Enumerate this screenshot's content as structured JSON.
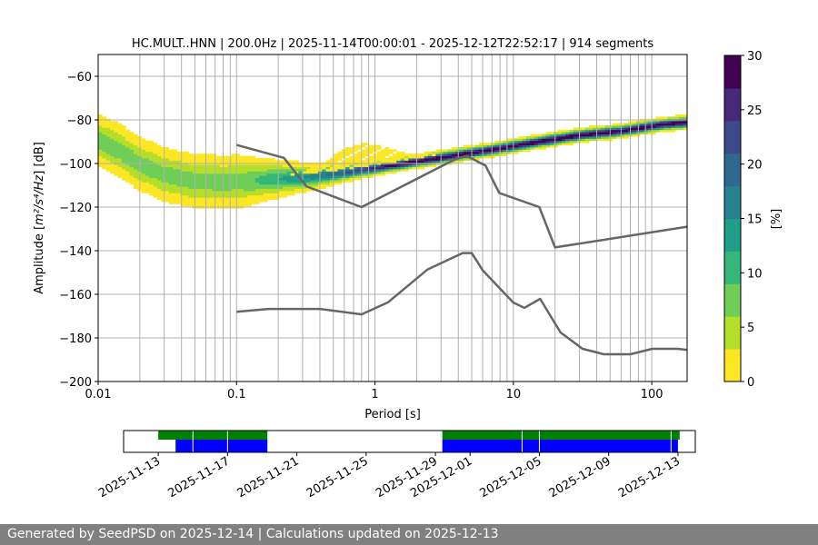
{
  "chart_data": [
    {
      "type": "heatmap",
      "title": "HC.MULT..HNN | 200.0Hz | 2025-11-14T00:00:01 - 2025-12-12T22:52:17 | 914 segments",
      "xlabel": "Period [s]",
      "ylabel_base": "Amplitude [",
      "ylabel_math": "m²/s⁴/Hz",
      "ylabel_unit": "[dB]",
      "xscale": "log",
      "xlim": [
        0.01,
        180
      ],
      "ylim": [
        -200,
        -50
      ],
      "x_ticks": [
        {
          "value": 0.01,
          "label": "0.01"
        },
        {
          "value": 0.1,
          "label": "0.1"
        },
        {
          "value": 1,
          "label": "1"
        },
        {
          "value": 10,
          "label": "10"
        },
        {
          "value": 100,
          "label": "100"
        }
      ],
      "y_ticks": [
        -60,
        -80,
        -100,
        -120,
        -140,
        -160,
        -180,
        -200
      ],
      "y_tick_labels": [
        "−60",
        "−80",
        "−100",
        "−120",
        "−140",
        "−160",
        "−180",
        "−200"
      ],
      "vertical_grid_periods": [
        0.02,
        0.03,
        0.04,
        0.05,
        0.06,
        0.07,
        0.08,
        0.09,
        0.1,
        0.2,
        0.3,
        0.4,
        0.5,
        0.6,
        0.7,
        0.8,
        0.9,
        1,
        2,
        3,
        4,
        5,
        6,
        7,
        8,
        9,
        10,
        20,
        30,
        40,
        50,
        60,
        70,
        80,
        90,
        100
      ],
      "grid": true,
      "nhnm": {
        "periods": [
          0.1,
          0.17,
          0.4,
          0.8,
          1.24,
          2.4,
          4.3,
          5.0,
          6.0,
          10.0,
          12.0,
          15.6,
          21.9,
          31.6,
          45,
          70,
          101,
          154,
          180
        ],
        "values": [
          -168,
          -166.7,
          -166.7,
          -169.2,
          -163.7,
          -148.6,
          -141.1,
          -141.1,
          -149,
          -163.8,
          -166.2,
          -162.1,
          -177.5,
          -185,
          -187.5,
          -187.5,
          -185,
          -185,
          -185.5
        ]
      },
      "nlnm": {
        "periods": [
          0.1,
          0.22,
          0.32,
          0.8,
          3.8,
          4.6,
          6.3,
          7.9,
          15.4,
          20,
          180
        ],
        "values": [
          -91.5,
          -97.4,
          -110.5,
          -120,
          -98,
          -96.5,
          -101,
          -113.5,
          -120,
          -138.5,
          -129
        ]
      },
      "psd_mode": {
        "periods": [
          0.01,
          0.015,
          0.02,
          0.03,
          0.05,
          0.08,
          0.12,
          0.2,
          0.35,
          0.6,
          1,
          2,
          4,
          8,
          15,
          30,
          60,
          120,
          180
        ],
        "values": [
          -89,
          -95,
          -100,
          -105,
          -108,
          -108.5,
          -108,
          -107,
          -106,
          -104,
          -102,
          -99,
          -96,
          -93,
          -90,
          -87,
          -85,
          -82,
          -81
        ]
      },
      "colorbar": {
        "label": "[%]",
        "min": 0,
        "max": 30,
        "ticks": [
          0,
          5,
          10,
          15,
          20,
          25,
          30
        ],
        "colors": [
          "#fde725",
          "#b5de2b",
          "#6ece58",
          "#35b779",
          "#1f9e89",
          "#26828e",
          "#31688e",
          "#3e4989",
          "#482878",
          "#440154"
        ]
      }
    },
    {
      "type": "timeline",
      "date_min": "2025-11-11",
      "date_max": "2025-12-14",
      "tick_labels": [
        "2025-11-13",
        "2025-11-17",
        "2025-11-21",
        "2025-11-25",
        "2025-11-29",
        "2025-12-01",
        "2025-12-05",
        "2025-12-09",
        "2025-12-13"
      ],
      "tick_dates": [
        "2025-11-13",
        "2025-11-17",
        "2025-11-21",
        "2025-11-25",
        "2025-11-29",
        "2025-12-01",
        "2025-12-05",
        "2025-12-09",
        "2025-12-13"
      ],
      "green_spans": [
        [
          "2025-11-13",
          "2025-11-19.3"
        ],
        [
          "2025-11-29.4",
          "2025-12-13.1"
        ]
      ],
      "blue_spans": [
        [
          "2025-11-14",
          "2025-11-19.3"
        ],
        [
          "2025-11-29.4",
          "2025-12-13.0"
        ]
      ],
      "gap_dates": [
        "2025-11-15",
        "2025-11-17",
        "2025-12-04",
        "2025-12-05",
        "2025-12-12.6"
      ],
      "colors": {
        "green": "#008000",
        "blue": "#0000ff"
      }
    }
  ],
  "footer": {
    "text": "Generated by SeedPSD on 2025-12-14 | Calculations updated on 2025-12-13"
  }
}
